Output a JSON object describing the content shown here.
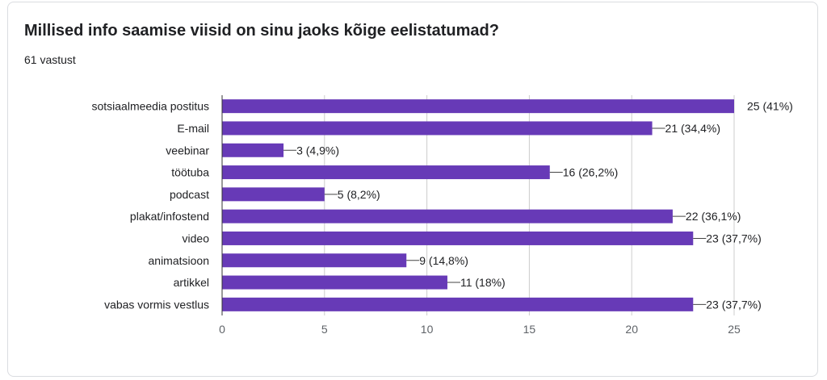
{
  "title": "Millised info saamise viisid on sinu jaoks kõige eelistatumad?",
  "subtitle": "61 vastust",
  "colors": {
    "bar": "#673ab7",
    "grid": "#cccccc",
    "axis": "#333333",
    "leader": "#444444"
  },
  "chart_data": {
    "type": "bar",
    "orientation": "horizontal",
    "title": "Millised info saamise viisid on sinu jaoks kõige eelistatumad?",
    "total_responses": 61,
    "categories": [
      "sotsiaalmeedia postitus",
      "E-mail",
      "veebinar",
      "töötuba",
      "podcast",
      "plakat/infostend",
      "video",
      "animatsioon",
      "artikkel",
      "vabas vormis vestlus"
    ],
    "values": [
      25,
      21,
      3,
      16,
      5,
      22,
      23,
      9,
      11,
      23
    ],
    "labels": [
      "25 (41%)",
      "21 (34,4%)",
      "3 (4,9%)",
      "16 (26,2%)",
      "5 (8,2%)",
      "22 (36,1%)",
      "23 (37,7%)",
      "9 (14,8%)",
      "11 (18%)",
      "23 (37,7%)"
    ],
    "xlim": [
      0,
      25
    ],
    "xticks": [
      0,
      5,
      10,
      15,
      20,
      25
    ],
    "xtick_labels": [
      "0",
      "5",
      "10",
      "15",
      "20",
      "25"
    ],
    "grid": true,
    "xlabel": "",
    "ylabel": ""
  }
}
